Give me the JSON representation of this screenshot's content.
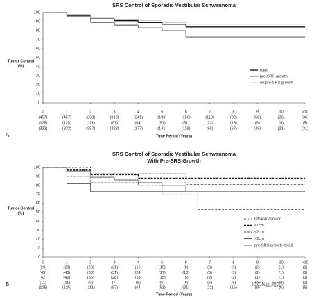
{
  "chart_data": [
    {
      "type": "step",
      "panel": "A",
      "title": "SRS Control of Sporadic Vestibular Schwannoma",
      "ylabel": [
        "Tumor Control",
        "(%)"
      ],
      "xlabel": "Time Period (Years)",
      "ylim": [
        0,
        100
      ],
      "yticks": [
        0,
        10,
        20,
        30,
        40,
        50,
        60,
        70,
        80,
        90,
        100
      ],
      "xlim": [
        0,
        11
      ],
      "xticks": [
        0,
        1,
        2,
        3,
        4,
        5,
        6,
        7,
        8,
        9,
        10,
        {
          "value": 11,
          "label": ">10"
        }
      ],
      "at_risk": [
        [
          "(457)",
          "(457)",
          "(398)",
          "(310)",
          "(241)",
          "(190)",
          "(150)",
          "(118)",
          "(82)",
          "(58)",
          "(36)",
          "(36)"
        ],
        [
          "(125)",
          "(125)",
          "(111)",
          "(87)",
          "(64)",
          "(51)",
          "(31)",
          "(22)",
          "(15)",
          "(9)",
          "(5)",
          "(5)"
        ],
        [
          "(332)",
          "(332)",
          "(287)",
          "(223)",
          "(177)",
          "(141)",
          "(119)",
          "(96)",
          "(67)",
          "(49)",
          "(31)",
          "(31)"
        ]
      ],
      "series": [
        {
          "name": "total",
          "color": "#111111",
          "style": "bold",
          "x": [
            0,
            1,
            2,
            3,
            4,
            5,
            6
          ],
          "values": [
            100,
            97,
            93,
            91,
            89,
            87,
            84
          ]
        },
        {
          "name": "pre-SRS growth",
          "color": "#777777",
          "style": "bold",
          "x": [
            0,
            1,
            2,
            3,
            4,
            5,
            6
          ],
          "values": [
            100,
            96,
            89,
            86,
            83,
            80,
            73
          ]
        },
        {
          "name": "no pre-SRS growth",
          "color": "#aaaaaa",
          "style": "thin",
          "x": [
            0,
            1,
            2,
            3,
            4,
            5,
            6
          ],
          "values": [
            100,
            98,
            94,
            92,
            91,
            89,
            87
          ]
        }
      ]
    },
    {
      "type": "step",
      "panel": "B",
      "title": [
        "SRS Control of Sporadic Vestibular Schwannoma",
        "With Pre-SRS Growth"
      ],
      "ylabel": [
        "Tumor Control",
        "(%)"
      ],
      "xlabel": "Time Period (Years)",
      "ylim": [
        0,
        100
      ],
      "yticks": [
        0,
        10,
        20,
        30,
        40,
        50,
        60,
        70,
        80,
        90,
        100
      ],
      "xlim": [
        0,
        11
      ],
      "xticks": [
        0,
        1,
        2,
        3,
        4,
        5,
        6,
        7,
        8,
        9,
        10,
        {
          "value": 11,
          "label": ">10"
        }
      ],
      "at_risk": [
        [
          "(29)",
          "(29)",
          "(28)",
          "(21)",
          "(16)",
          "(15)",
          "(8)",
          "(8)",
          "(5)",
          "(2)",
          "(1)",
          "(1)"
        ],
        [
          "(45)",
          "(43)",
          "(38)",
          "(31)",
          "(24)",
          "(17)",
          "(10)",
          "(6)",
          "(3)",
          "(2)",
          "(1)",
          "(1)"
        ],
        [
          "(42)",
          "(42)",
          "(36)",
          "(28)",
          "(18)",
          "(15)",
          "(5)",
          "(2)",
          "(2)",
          "(1)",
          "(1)",
          "(1)"
        ],
        [
          "(11)",
          "(11)",
          "(9)",
          "(7)",
          "(6)",
          "(6)",
          "(6)",
          "(6)",
          "(5)",
          "(4)",
          "(2)",
          "(2)"
        ],
        [
          "(125)",
          "(125)",
          "(111)",
          "(87)",
          "(64)",
          "(51)",
          "(31)",
          "(22)",
          "(15)",
          "(9)",
          "(5)",
          "(5)"
        ]
      ],
      "series": [
        {
          "name": "Intracanalicular",
          "color": "#111111",
          "style": "dotted",
          "x": [
            0,
            2,
            6
          ],
          "values": [
            100,
            93,
            81
          ]
        },
        {
          "name": "≤1cm",
          "color": "#111111",
          "style": "bold-dashed",
          "x": [
            0,
            1,
            2,
            4
          ],
          "values": [
            100,
            97,
            92,
            88
          ]
        },
        {
          "name": "≤2cm",
          "color": "#555555",
          "style": "dashed",
          "x": [
            0,
            1,
            2,
            4,
            5,
            6.5
          ],
          "values": [
            100,
            90,
            83,
            80,
            70,
            53
          ]
        },
        {
          "name": ">2cm",
          "color": "#111111",
          "style": "thin",
          "x": [
            0,
            1,
            2
          ],
          "values": [
            100,
            82,
            73
          ]
        },
        {
          "name": "pre-SRS growth (total)",
          "color": "#888888",
          "style": "bold",
          "x": [
            0,
            1,
            2,
            3,
            4,
            5,
            6
          ],
          "values": [
            100,
            96,
            89,
            86,
            83,
            80,
            73
          ]
        }
      ]
    }
  ],
  "watermark": "ICON血肉刀"
}
